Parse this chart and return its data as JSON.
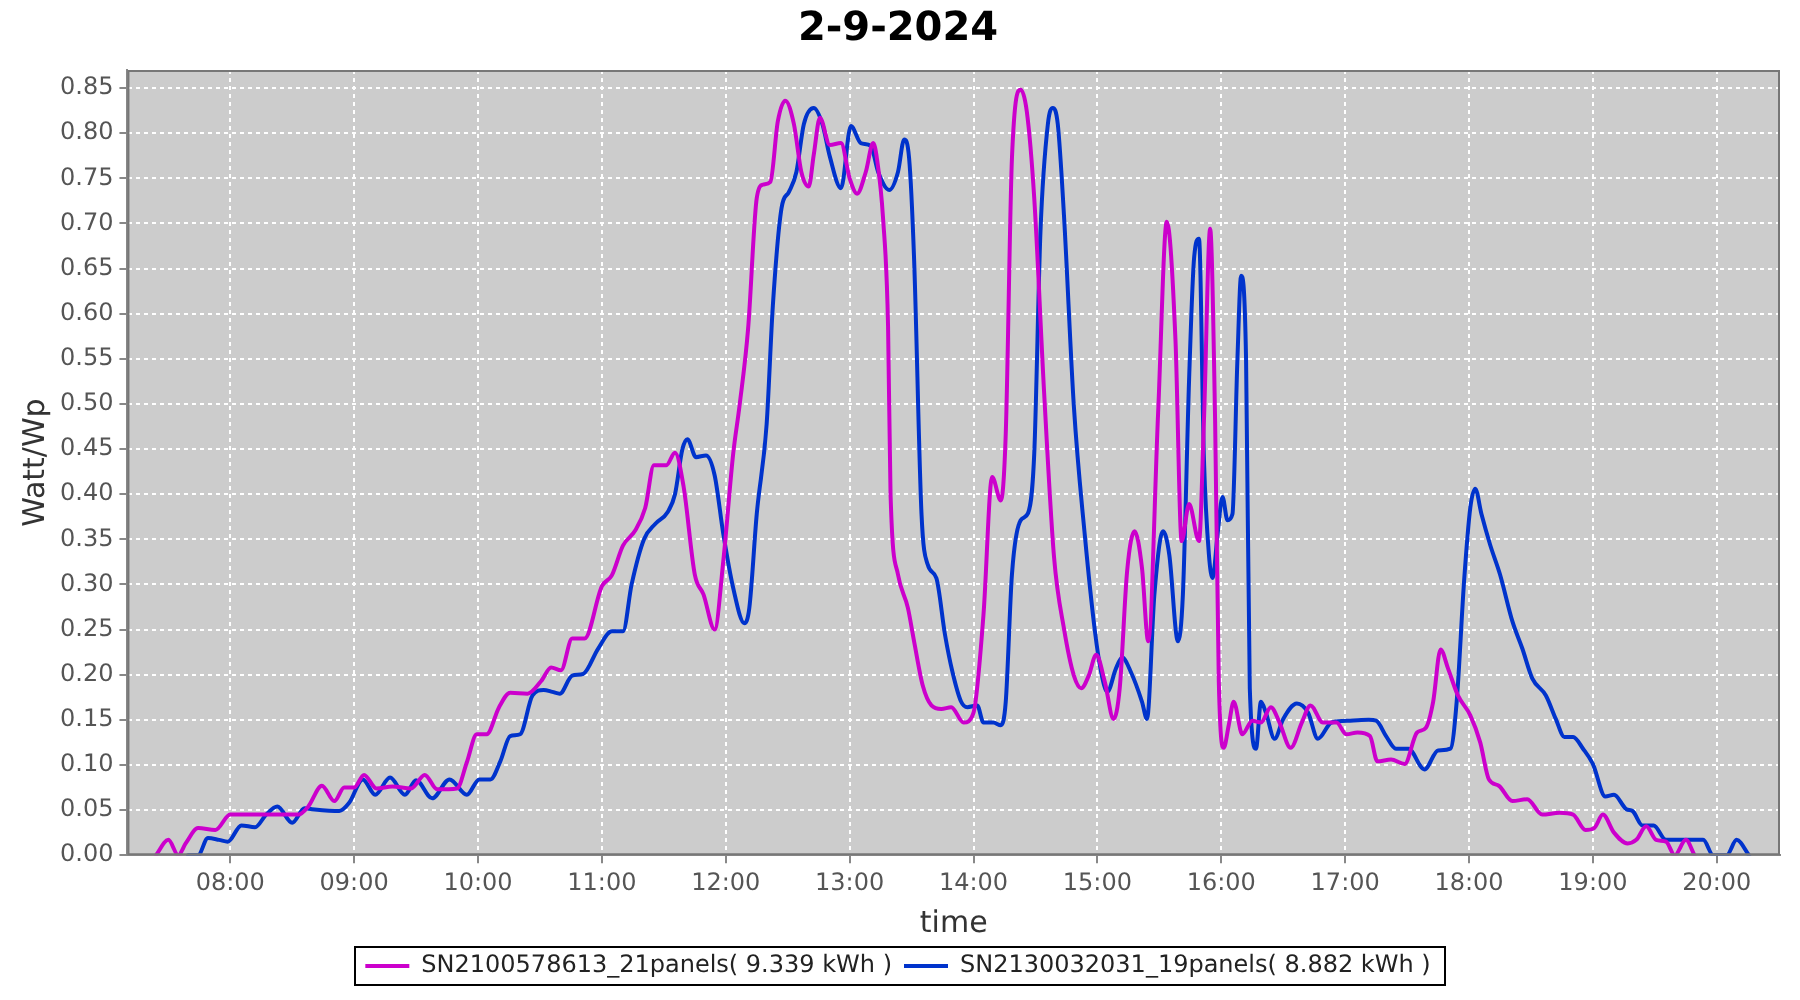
{
  "chart_data": {
    "type": "line",
    "title": "2-9-2024",
    "xlabel": "time",
    "ylabel": "Watt/Wp",
    "xlim": [
      7.17,
      20.51
    ],
    "xticks": [
      {
        "value": 8,
        "label": "08:00"
      },
      {
        "value": 9,
        "label": "09:00"
      },
      {
        "value": 10,
        "label": "10:00"
      },
      {
        "value": 11,
        "label": "11:00"
      },
      {
        "value": 12,
        "label": "12:00"
      },
      {
        "value": 13,
        "label": "13:00"
      },
      {
        "value": 14,
        "label": "14:00"
      },
      {
        "value": 15,
        "label": "15:00"
      },
      {
        "value": 16,
        "label": "16:00"
      },
      {
        "value": 17,
        "label": "17:00"
      },
      {
        "value": 18,
        "label": "18:00"
      },
      {
        "value": 19,
        "label": "19:00"
      },
      {
        "value": 20,
        "label": "20:00"
      }
    ],
    "ylim": [
      0,
      0.87
    ],
    "yticks": [
      {
        "value": 0,
        "label": "0.00"
      },
      0.05,
      {
        "value": 0.1,
        "label": "0.10"
      },
      0.15,
      {
        "value": 0.2,
        "label": "0.20"
      },
      0.25,
      {
        "value": 0.3,
        "label": "0.30"
      },
      0.35,
      {
        "value": 0.4,
        "label": "0.40"
      },
      0.45,
      {
        "value": 0.5,
        "label": "0.50"
      },
      0.55,
      {
        "value": 0.6,
        "label": "0.60"
      },
      0.65,
      {
        "value": 0.7,
        "label": "0.70"
      },
      0.75,
      {
        "value": 0.8,
        "label": "0.80"
      },
      0.85
    ],
    "grid": true,
    "legend": "bottom",
    "series": [
      {
        "name": "SN2100578613_21panels( 9.339 kWh )",
        "color": "#cc00cc",
        "x": [
          7.4,
          7.5,
          7.58,
          7.64,
          7.74,
          7.88,
          8.0,
          8.28,
          8.55,
          8.63,
          8.74,
          8.84,
          8.92,
          9.0,
          9.08,
          9.18,
          9.31,
          9.46,
          9.57,
          9.67,
          9.83,
          9.91,
          9.99,
          10.07,
          10.17,
          10.26,
          10.4,
          10.51,
          10.59,
          10.67,
          10.76,
          10.86,
          11.0,
          11.08,
          11.17,
          11.27,
          11.35,
          11.42,
          11.52,
          11.59,
          11.66,
          11.75,
          11.82,
          11.91,
          11.98,
          12.06,
          12.11,
          12.18,
          12.25,
          12.3,
          12.36,
          12.42,
          12.48,
          12.55,
          12.61,
          12.67,
          12.71,
          12.76,
          12.84,
          12.93,
          13.0,
          13.06,
          13.13,
          13.19,
          13.22,
          13.27,
          13.31,
          13.33,
          13.39,
          13.47,
          13.52,
          13.59,
          13.66,
          13.74,
          13.82,
          13.92,
          14.0,
          14.08,
          14.15,
          14.22,
          14.26,
          14.31,
          14.38,
          14.43,
          14.49,
          14.57,
          14.65,
          14.73,
          14.81,
          14.87,
          14.93,
          14.99,
          15.06,
          15.13,
          15.18,
          15.24,
          15.3,
          15.36,
          15.41,
          15.49,
          15.56,
          15.63,
          15.68,
          15.74,
          15.82,
          15.86,
          15.91,
          15.95,
          15.98,
          16.02,
          16.06,
          16.1,
          16.17,
          16.25,
          16.32,
          16.4,
          16.47,
          16.56,
          16.65,
          16.72,
          16.82,
          16.93,
          17.01,
          17.1,
          17.2,
          17.26,
          17.37,
          17.48,
          17.58,
          17.65,
          17.71,
          17.77,
          17.83,
          17.91,
          18.01,
          18.09,
          18.16,
          18.24,
          18.35,
          18.47,
          18.59,
          18.73,
          18.84,
          18.94,
          19.01,
          19.08,
          19.17,
          19.28,
          19.35,
          19.43,
          19.51,
          19.59,
          19.66,
          19.75,
          19.82
        ],
        "values": [
          0,
          0.017,
          0,
          0.013,
          0.03,
          0.028,
          0.045,
          0.045,
          0.045,
          0.054,
          0.077,
          0.06,
          0.075,
          0.075,
          0.089,
          0.074,
          0.076,
          0.074,
          0.089,
          0.073,
          0.074,
          0.103,
          0.134,
          0.134,
          0.164,
          0.18,
          0.179,
          0.193,
          0.208,
          0.205,
          0.24,
          0.24,
          0.298,
          0.31,
          0.343,
          0.36,
          0.385,
          0.432,
          0.432,
          0.446,
          0.408,
          0.311,
          0.289,
          0.25,
          0.326,
          0.445,
          0.497,
          0.583,
          0.728,
          0.743,
          0.746,
          0.813,
          0.836,
          0.81,
          0.757,
          0.741,
          0.776,
          0.817,
          0.787,
          0.789,
          0.75,
          0.733,
          0.757,
          0.789,
          0.772,
          0.705,
          0.586,
          0.4,
          0.311,
          0.274,
          0.237,
          0.188,
          0.166,
          0.162,
          0.164,
          0.147,
          0.158,
          0.266,
          0.419,
          0.393,
          0.467,
          0.772,
          0.848,
          0.824,
          0.728,
          0.512,
          0.33,
          0.251,
          0.199,
          0.185,
          0.199,
          0.222,
          0.192,
          0.151,
          0.185,
          0.315,
          0.359,
          0.318,
          0.237,
          0.49,
          0.702,
          0.571,
          0.348,
          0.389,
          0.348,
          0.482,
          0.694,
          0.482,
          0.192,
          0.119,
          0.144,
          0.17,
          0.134,
          0.149,
          0.147,
          0.164,
          0.147,
          0.119,
          0.147,
          0.166,
          0.147,
          0.147,
          0.134,
          0.136,
          0.132,
          0.104,
          0.106,
          0.101,
          0.136,
          0.141,
          0.17,
          0.228,
          0.207,
          0.177,
          0.155,
          0.125,
          0.084,
          0.077,
          0.06,
          0.062,
          0.045,
          0.047,
          0.045,
          0.028,
          0.03,
          0.045,
          0.025,
          0.013,
          0.017,
          0.032,
          0.017,
          0.015,
          0,
          0.017,
          0
        ]
      },
      {
        "name": "SN2130032031_19panels( 8.882 kWh )",
        "color": "#0033cc",
        "x": [
          7.66,
          7.74,
          7.82,
          7.91,
          7.98,
          8.09,
          8.2,
          8.29,
          8.38,
          8.5,
          8.6,
          8.66,
          8.88,
          8.96,
          9.07,
          9.17,
          9.29,
          9.41,
          9.5,
          9.63,
          9.77,
          9.91,
          10.01,
          10.1,
          10.18,
          10.26,
          10.34,
          10.44,
          10.53,
          10.6,
          10.66,
          10.76,
          10.85,
          10.97,
          11.08,
          11.17,
          11.24,
          11.34,
          11.43,
          11.53,
          11.59,
          11.65,
          11.69,
          11.76,
          11.84,
          11.91,
          11.98,
          12.06,
          12.15,
          12.19,
          12.25,
          12.33,
          12.38,
          12.45,
          12.51,
          12.57,
          12.63,
          12.71,
          12.78,
          12.84,
          12.93,
          13.01,
          13.09,
          13.17,
          13.23,
          13.32,
          13.39,
          13.44,
          13.48,
          13.52,
          13.58,
          13.63,
          13.7,
          13.77,
          13.83,
          13.9,
          13.95,
          14.03,
          14.08,
          14.16,
          14.22,
          14.26,
          14.31,
          14.38,
          14.44,
          14.49,
          14.54,
          14.6,
          14.64,
          14.68,
          14.73,
          14.81,
          14.9,
          14.98,
          15.03,
          15.08,
          15.15,
          15.2,
          15.27,
          15.36,
          15.4,
          15.46,
          15.53,
          15.58,
          15.65,
          15.69,
          15.74,
          15.78,
          15.82,
          15.86,
          15.9,
          15.93,
          15.97,
          16.01,
          16.05,
          16.09,
          16.13,
          16.16,
          16.2,
          16.23,
          16.28,
          16.32,
          16.36,
          16.43,
          16.5,
          16.61,
          16.7,
          16.78,
          16.89,
          17.04,
          17.19,
          17.25,
          17.33,
          17.41,
          17.51,
          17.64,
          17.75,
          17.85,
          17.9,
          17.96,
          18.01,
          18.05,
          18.1,
          18.17,
          18.25,
          18.35,
          18.43,
          18.51,
          18.62,
          18.7,
          18.77,
          18.84,
          18.92,
          19.0,
          19.1,
          19.17,
          19.27,
          19.32,
          19.4,
          19.49,
          19.59,
          19.76,
          19.89,
          19.97,
          20.08,
          20.16,
          20.26
        ],
        "values": [
          0,
          0,
          0.019,
          0.017,
          0.015,
          0.033,
          0.031,
          0.045,
          0.054,
          0.036,
          0.052,
          0.051,
          0.049,
          0.058,
          0.084,
          0.067,
          0.086,
          0.067,
          0.083,
          0.063,
          0.084,
          0.067,
          0.084,
          0.084,
          0.104,
          0.132,
          0.134,
          0.177,
          0.183,
          0.181,
          0.179,
          0.199,
          0.201,
          0.229,
          0.248,
          0.248,
          0.3,
          0.35,
          0.367,
          0.38,
          0.4,
          0.45,
          0.461,
          0.441,
          0.443,
          0.421,
          0.356,
          0.296,
          0.257,
          0.274,
          0.378,
          0.478,
          0.609,
          0.717,
          0.735,
          0.757,
          0.81,
          0.828,
          0.81,
          0.774,
          0.739,
          0.808,
          0.789,
          0.786,
          0.757,
          0.737,
          0.757,
          0.793,
          0.772,
          0.661,
          0.378,
          0.322,
          0.307,
          0.244,
          0.203,
          0.17,
          0.164,
          0.166,
          0.147,
          0.147,
          0.144,
          0.17,
          0.311,
          0.371,
          0.379,
          0.445,
          0.69,
          0.81,
          0.828,
          0.81,
          0.709,
          0.497,
          0.352,
          0.248,
          0.203,
          0.181,
          0.207,
          0.219,
          0.203,
          0.17,
          0.151,
          0.289,
          0.359,
          0.333,
          0.237,
          0.289,
          0.527,
          0.661,
          0.683,
          0.438,
          0.333,
          0.307,
          0.356,
          0.397,
          0.371,
          0.378,
          0.549,
          0.642,
          0.549,
          0.185,
          0.118,
          0.17,
          0.158,
          0.129,
          0.151,
          0.168,
          0.158,
          0.129,
          0.147,
          0.149,
          0.15,
          0.149,
          0.132,
          0.118,
          0.118,
          0.095,
          0.116,
          0.118,
          0.17,
          0.304,
          0.385,
          0.406,
          0.378,
          0.344,
          0.311,
          0.259,
          0.229,
          0.196,
          0.177,
          0.151,
          0.131,
          0.131,
          0.118,
          0.101,
          0.065,
          0.067,
          0.051,
          0.049,
          0.033,
          0.033,
          0.017,
          0.017,
          0.017,
          0,
          0,
          0.017,
          0
        ]
      }
    ]
  }
}
